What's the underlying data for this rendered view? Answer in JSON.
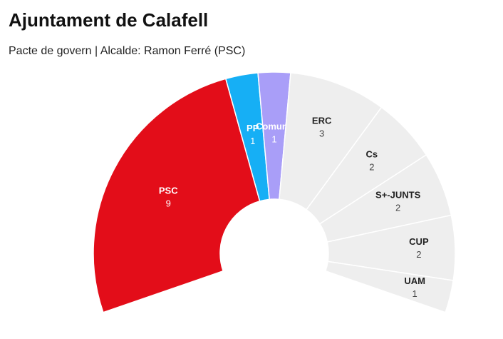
{
  "chart_data": {
    "type": "semicircle",
    "title": "Ajuntament de Calafell",
    "subtitle": "Pacte de govern | Alcalde: Ramon Ferré (PSC)",
    "categories": [
      "PSC",
      "PP",
      "Comuns",
      "ERC",
      "Cs",
      "S+-JUNTS",
      "CUP",
      "UAM"
    ],
    "values": [
      9,
      1,
      1,
      3,
      2,
      2,
      2,
      1
    ],
    "colors": [
      "#e30d19",
      "#16aff5",
      "#a99ef8",
      "#eeeeee",
      "#eeeeee",
      "#eeeeee",
      "#eeeeee",
      "#eeeeee"
    ]
  }
}
